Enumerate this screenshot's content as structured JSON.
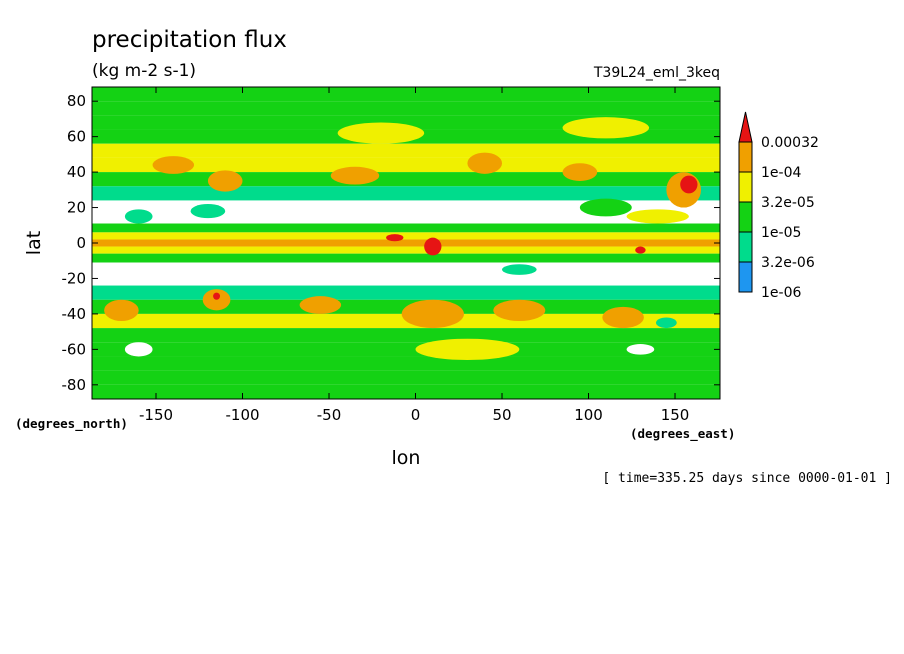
{
  "chart_data": {
    "type": "heatmap",
    "title": "precipitation flux",
    "units": "(kg m-2 s-1)",
    "dataset": "T39L24_eml_3keq",
    "xlabel": "lon",
    "ylabel": "lat",
    "xunits": "(degrees_east)",
    "yunits": "(degrees_north)",
    "time_label": "[ time=335.25 days since 0000-01-01 ]",
    "xlim": [
      -187,
      176
    ],
    "ylim": [
      -88,
      88
    ],
    "xticks": [
      -150,
      -100,
      -50,
      0,
      50,
      100,
      150
    ],
    "yticks": [
      -80,
      -60,
      -40,
      -20,
      0,
      20,
      40,
      60,
      80
    ],
    "xtick_labels": [
      "-150",
      "-100",
      "-50",
      "0",
      "50",
      "100",
      "150"
    ],
    "ytick_labels": [
      "-80",
      "-60",
      "-40",
      "-20",
      "0",
      "20",
      "40",
      "60",
      "80"
    ],
    "levels": [
      "1e-06",
      "3.2e-06",
      "1e-05",
      "3.2e-05",
      "1e-04",
      "0.00032"
    ],
    "level_colors": [
      "#1e96f0",
      "#00dc8c",
      "#14d214",
      "#f0f000",
      "#f0a000",
      "#e61414"
    ],
    "bands": [
      {
        "lat": 84,
        "level": 2
      },
      {
        "lat": 76,
        "level": 2
      },
      {
        "lat": 68,
        "level": 2
      },
      {
        "lat": 60,
        "level": 2
      },
      {
        "lat": 52,
        "level": 3
      },
      {
        "lat": 44,
        "level": 3
      },
      {
        "lat": 36,
        "level": 2
      },
      {
        "lat": 28,
        "level": 1
      },
      {
        "lat": 20,
        "level": -1
      },
      {
        "lat": 14,
        "level": -1
      },
      {
        "lat": 8,
        "level": 2
      },
      {
        "lat": 4,
        "level": 3
      },
      {
        "lat": 0,
        "level": 4
      },
      {
        "lat": -4,
        "level": 3
      },
      {
        "lat": -8,
        "level": 2
      },
      {
        "lat": -14,
        "level": -1
      },
      {
        "lat": -20,
        "level": -1
      },
      {
        "lat": -28,
        "level": 1
      },
      {
        "lat": -36,
        "level": 2
      },
      {
        "lat": -44,
        "level": 3
      },
      {
        "lat": -52,
        "level": 2
      },
      {
        "lat": -60,
        "level": 2
      },
      {
        "lat": -68,
        "level": 2
      },
      {
        "lat": -76,
        "level": 2
      },
      {
        "lat": -84,
        "level": 2
      }
    ],
    "blobs": [
      {
        "lon": 10,
        "lat": -2,
        "level": 5,
        "rl": 5,
        "rb": 5
      },
      {
        "lon": -12,
        "lat": 3,
        "level": 5,
        "rl": 5,
        "rb": 2
      },
      {
        "lon": 130,
        "lat": -4,
        "level": 5,
        "rl": 3,
        "rb": 2
      },
      {
        "lon": 158,
        "lat": 33,
        "level": 5,
        "rl": 5,
        "rb": 5
      },
      {
        "lon": -115,
        "lat": -30,
        "level": 5,
        "rl": 2,
        "rb": 2
      },
      {
        "lon": 155,
        "lat": 30,
        "level": 4,
        "rl": 10,
        "rb": 10
      },
      {
        "lon": -140,
        "lat": 44,
        "level": 4,
        "rl": 12,
        "rb": 5
      },
      {
        "lon": -110,
        "lat": 35,
        "level": 4,
        "rl": 10,
        "rb": 6
      },
      {
        "lon": -35,
        "lat": 38,
        "level": 4,
        "rl": 14,
        "rb": 5
      },
      {
        "lon": 40,
        "lat": 45,
        "level": 4,
        "rl": 10,
        "rb": 6
      },
      {
        "lon": 95,
        "lat": 40,
        "level": 4,
        "rl": 10,
        "rb": 5
      },
      {
        "lon": -170,
        "lat": -38,
        "level": 4,
        "rl": 10,
        "rb": 6
      },
      {
        "lon": -115,
        "lat": -32,
        "level": 4,
        "rl": 8,
        "rb": 6
      },
      {
        "lon": -55,
        "lat": -35,
        "level": 4,
        "rl": 12,
        "rb": 5
      },
      {
        "lon": 10,
        "lat": -40,
        "level": 4,
        "rl": 18,
        "rb": 8
      },
      {
        "lon": 60,
        "lat": -38,
        "level": 4,
        "rl": 15,
        "rb": 6
      },
      {
        "lon": 120,
        "lat": -42,
        "level": 4,
        "rl": 12,
        "rb": 6
      },
      {
        "lon": -20,
        "lat": 62,
        "level": 3,
        "rl": 25,
        "rb": 6
      },
      {
        "lon": 110,
        "lat": 65,
        "level": 3,
        "rl": 25,
        "rb": 6
      },
      {
        "lon": 30,
        "lat": -60,
        "level": 3,
        "rl": 30,
        "rb": 6
      },
      {
        "lon": -160,
        "lat": 15,
        "level": 1,
        "rl": 8,
        "rb": 4
      },
      {
        "lon": -120,
        "lat": 18,
        "level": 1,
        "rl": 10,
        "rb": 4
      },
      {
        "lon": 110,
        "lat": 20,
        "level": 2,
        "rl": 15,
        "rb": 5
      },
      {
        "lon": 60,
        "lat": -15,
        "level": 1,
        "rl": 10,
        "rb": 3
      },
      {
        "lon": 145,
        "lat": -45,
        "level": 1,
        "rl": 6,
        "rb": 3
      },
      {
        "lon": -160,
        "lat": -60,
        "level": -1,
        "rl": 8,
        "rb": 4
      },
      {
        "lon": 130,
        "lat": -60,
        "level": -1,
        "rl": 8,
        "rb": 3
      },
      {
        "lon": 140,
        "lat": 15,
        "level": 3,
        "rl": 18,
        "rb": 4
      }
    ],
    "grid": false
  }
}
